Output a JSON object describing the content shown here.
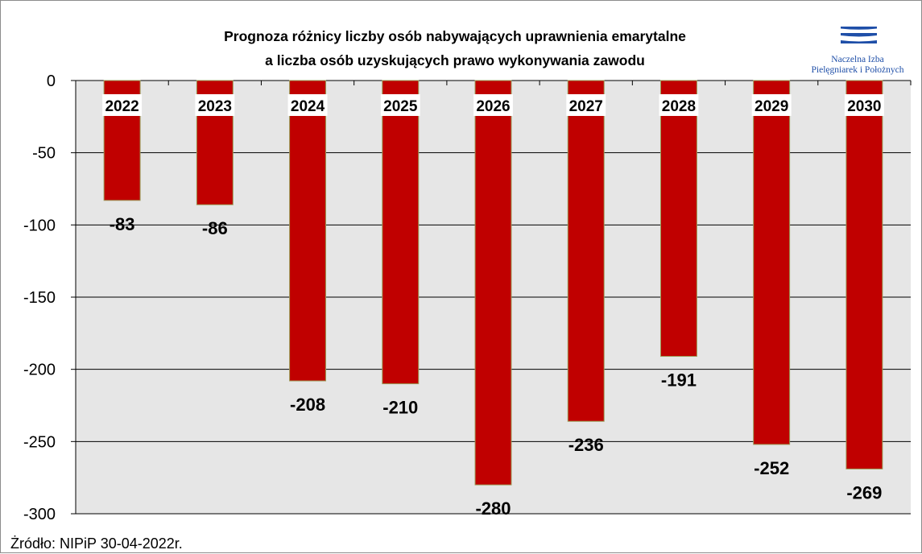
{
  "logo": {
    "line1": "Naczelna Izba",
    "line2": "Pielęgniarek i Położnych",
    "color": "#1f4fa8"
  },
  "source_note": "Żródło: NIPiP 30-04-2022r.",
  "chart_data": {
    "type": "bar",
    "title": [
      "Prognoza różnicy liczby osób nabywających uprawnienia emarytalne",
      "a liczba osób uzyskujących prawo wykonywania zawodu"
    ],
    "categories": [
      "2022",
      "2023",
      "2024",
      "2025",
      "2026",
      "2027",
      "2028",
      "2029",
      "2030"
    ],
    "values": [
      -83,
      -86,
      -208,
      -210,
      -280,
      -236,
      -191,
      -252,
      -269
    ],
    "value_labels": [
      "-83",
      "-86",
      "-208",
      "-210",
      "-280",
      "-236",
      "-191",
      "-252",
      "-269"
    ],
    "ylim": [
      -300,
      0
    ],
    "yticks": [
      0,
      -50,
      -100,
      -150,
      -200,
      -250,
      -300
    ],
    "ytick_labels": [
      "0",
      "-50",
      "-100",
      "-150",
      "-200",
      "-250",
      "-300"
    ],
    "xlabel": "",
    "ylabel": "",
    "grid": true,
    "legend": "none",
    "colors": {
      "bar": "#c00000",
      "bar_edge": "#9a9a55",
      "plot_bg": "#e6e6e6",
      "grid": "#000000"
    }
  }
}
